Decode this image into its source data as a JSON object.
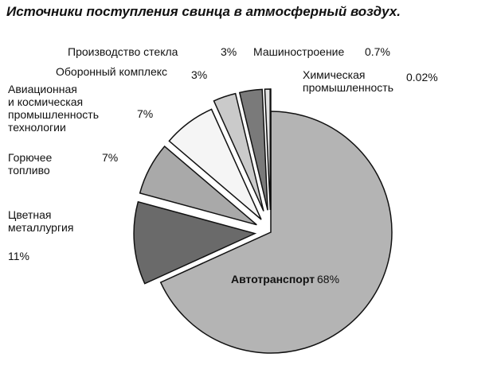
{
  "chart_data": {
    "type": "pie",
    "title": "Источники поступления свинца в атмосферный воздух.",
    "categories": [
      "Автотранспорт",
      "Цветная\nметаллургия",
      "Горючее\nтопливо",
      "Авиационная\nи космическая\nпромышленность\nтехнологии",
      "Оборонный комплекс",
      "Производство стекла",
      "Машиностроение",
      "Химическая\nпромышленность"
    ],
    "values": [
      68,
      11,
      7,
      7,
      3,
      3,
      0.7,
      0.02
    ],
    "value_labels": [
      "68%",
      "11%",
      "7%",
      "7%",
      "3%",
      "3%",
      "0.7%",
      "0.02%"
    ],
    "colors": [
      "#b4b4b4",
      "#6a6a6a",
      "#a9a9a9",
      "#f5f5f5",
      "#cacaca",
      "#7a7a7a",
      "#e2e2e2",
      "#2a2a2a"
    ]
  }
}
